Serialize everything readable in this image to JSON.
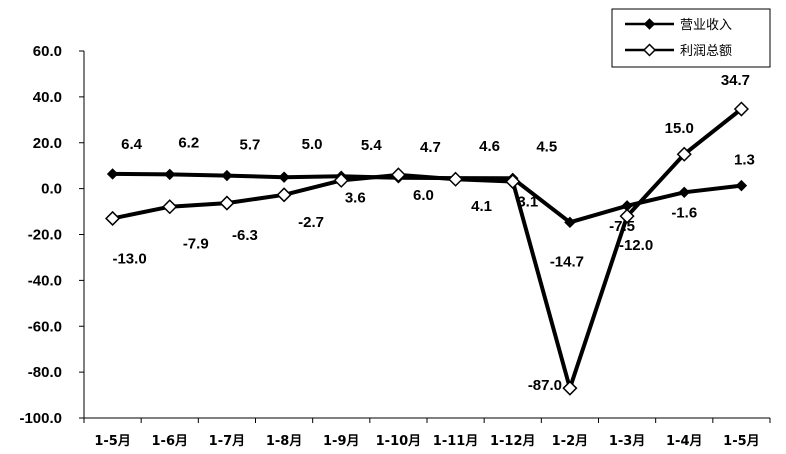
{
  "chart_data": {
    "type": "line",
    "categories": [
      "1-5月",
      "1-6月",
      "1-7月",
      "1-8月",
      "1-9月",
      "1-10月",
      "1-11月",
      "1-12月",
      "1-2月",
      "1-3月",
      "1-4月",
      "1-5月"
    ],
    "series": [
      {
        "name": "营业收入",
        "marker": "filled-diamond",
        "values": [
          6.4,
          6.2,
          5.7,
          5.0,
          5.4,
          4.7,
          4.6,
          4.5,
          -14.7,
          -7.5,
          -1.6,
          1.3
        ],
        "labels": [
          "6.4",
          "6.2",
          "5.7",
          "5.0",
          "5.4",
          "4.7",
          "4.6",
          "4.5",
          "-14.7",
          "-7.5",
          "-1.6",
          "1.3"
        ]
      },
      {
        "name": "利润总额",
        "marker": "hollow-diamond",
        "values": [
          -13.0,
          -7.9,
          -6.3,
          -2.7,
          3.6,
          6.0,
          4.1,
          3.1,
          -87.0,
          -12.0,
          15.0,
          34.7
        ],
        "labels": [
          "-13.0",
          "-7.9",
          "-6.3",
          "-2.7",
          "3.6",
          "6.0",
          "4.1",
          "3.1",
          "-87.0",
          "-12.0",
          "15.0",
          "34.7"
        ]
      }
    ],
    "ylim": [
      -100,
      60
    ],
    "yticks": [
      "60.0",
      "40.0",
      "20.0",
      "0.0",
      "-20.0",
      "-40.0",
      "-60.0",
      "-80.0",
      "-100.0"
    ],
    "ytick_values": [
      60,
      40,
      20,
      0,
      -20,
      -40,
      -60,
      -80,
      -100
    ],
    "legend_position": "top-right",
    "grid": false,
    "title": "",
    "xlabel": "",
    "ylabel": "",
    "colors": {
      "line": "#000000",
      "background": "#ffffff"
    }
  }
}
